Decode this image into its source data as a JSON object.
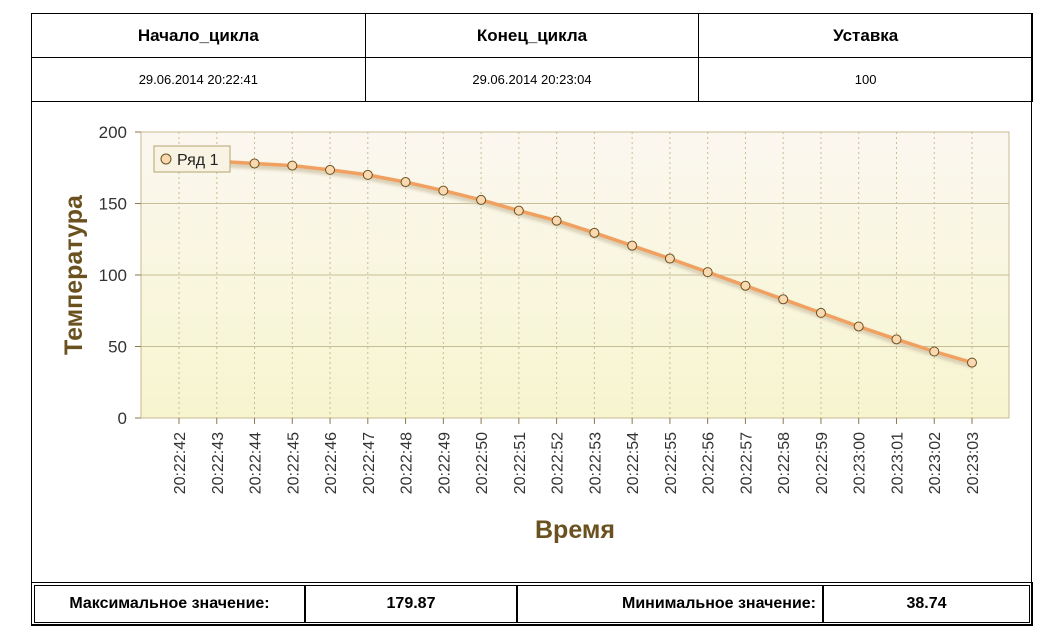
{
  "header": {
    "col1_label": "Начало_цикла",
    "col2_label": "Конец_цикла",
    "col3_label": "Уставка",
    "col1_value": "29.06.2014 20:22:41",
    "col2_value": "29.06.2014 20:23:04",
    "col3_value": "100"
  },
  "footer": {
    "max_label": "Максимальное значение:",
    "max_value": "179.87",
    "min_label": "Минимальное значение:",
    "min_value": "38.74"
  },
  "chart_data": {
    "type": "line",
    "xlabel": "Время",
    "ylabel": "Температура",
    "ylim": [
      0,
      200
    ],
    "yticks": [
      0,
      50,
      100,
      150,
      200
    ],
    "grid": true,
    "legend_position": "top-left",
    "x": [
      "20:22:42",
      "20:22:43",
      "20:22:44",
      "20:22:45",
      "20:22:46",
      "20:22:47",
      "20:22:48",
      "20:22:49",
      "20:22:50",
      "20:22:51",
      "20:22:52",
      "20:22:53",
      "20:22:54",
      "20:22:55",
      "20:22:56",
      "20:22:57",
      "20:22:58",
      "20:22:59",
      "20:23:00",
      "20:23:01",
      "20:23:02",
      "20:23:03"
    ],
    "series": [
      {
        "name": "Ряд 1",
        "color": "#f0a060",
        "values": [
          179.87,
          179.5,
          178,
          176.5,
          173.5,
          170,
          165,
          159,
          152.5,
          145,
          138,
          129.5,
          120.5,
          111.5,
          102,
          92.5,
          83,
          73.5,
          64,
          55,
          46.5,
          38.74
        ]
      }
    ]
  }
}
